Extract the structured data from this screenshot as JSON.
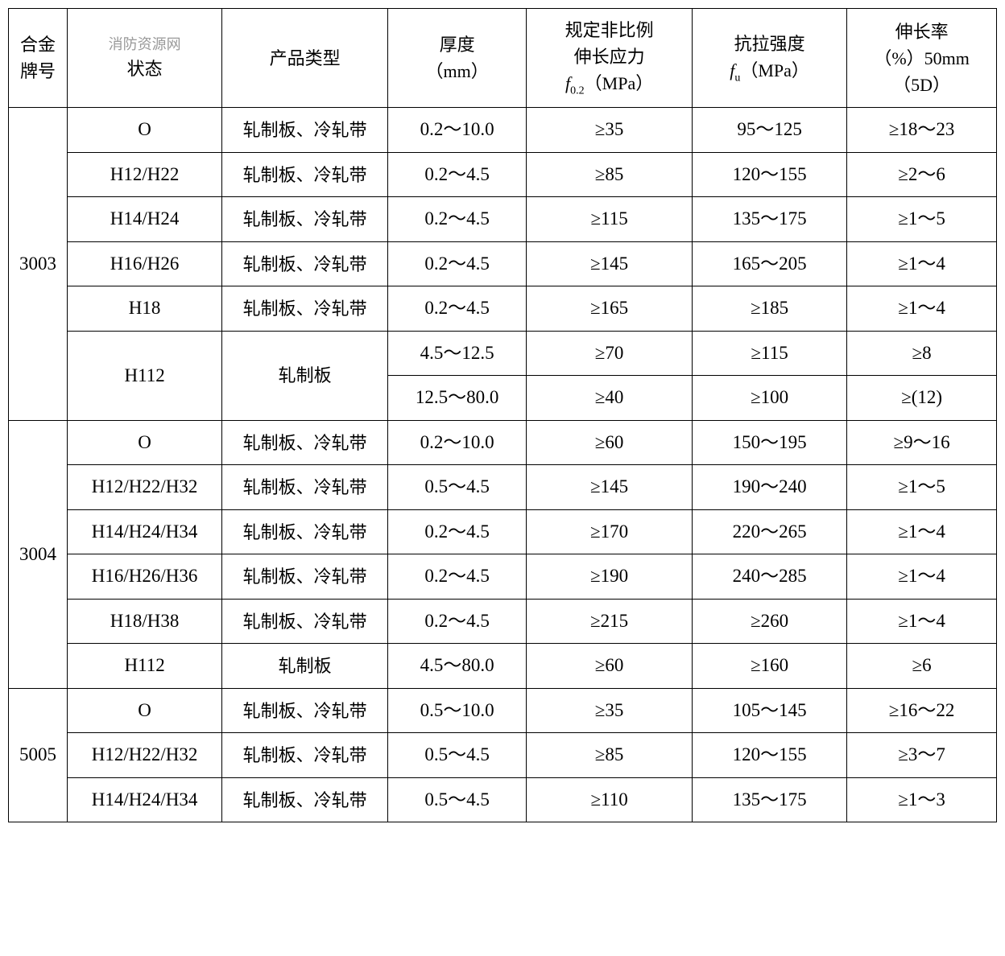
{
  "headers": {
    "col1_l1": "合金",
    "col1_l2": "牌号",
    "col2_watermark": "消防资源网",
    "col2": "状态",
    "col3": "产品类型",
    "col4_l1": "厚度",
    "col4_l2": "（mm）",
    "col5_l1": "规定非比例",
    "col5_l2": "伸长应力",
    "col5_l3a": "f",
    "col5_l3b": "0.2",
    "col5_l3c": "（MPa）",
    "col6_l1": "抗拉强度",
    "col6_l2a": "f",
    "col6_l2b": "u",
    "col6_l2c": "（MPa）",
    "col7_l1": "伸长率",
    "col7_l2": "（%）50mm",
    "col7_l3": "（5D）"
  },
  "groups": [
    {
      "alloy": "3003",
      "rows": [
        {
          "state": "O",
          "product": "轧制板、冷轧带",
          "thickness": "0.2～10.0",
          "f02": "≥35",
          "fu": "95～125",
          "elong": "≥18～23",
          "rowspan": 1
        },
        {
          "state": "H12/H22",
          "product": "轧制板、冷轧带",
          "thickness": "0.2～4.5",
          "f02": "≥85",
          "fu": "120～155",
          "elong": "≥2～6",
          "rowspan": 1
        },
        {
          "state": "H14/H24",
          "product": "轧制板、冷轧带",
          "thickness": "0.2～4.5",
          "f02": "≥115",
          "fu": "135～175",
          "elong": "≥1～5",
          "rowspan": 1
        },
        {
          "state": "H16/H26",
          "product": "轧制板、冷轧带",
          "thickness": "0.2～4.5",
          "f02": "≥145",
          "fu": "165～205",
          "elong": "≥1～4",
          "rowspan": 1
        },
        {
          "state": "H18",
          "product": "轧制板、冷轧带",
          "thickness": "0.2～4.5",
          "f02": "≥165",
          "fu": "≥185",
          "elong": "≥1～4",
          "rowspan": 1
        },
        {
          "state": "H112",
          "product": "轧制板",
          "thickness": "4.5～12.5",
          "f02": "≥70",
          "fu": "≥115",
          "elong": "≥8",
          "rowspan": 2
        },
        {
          "thickness": "12.5～80.0",
          "f02": "≥40",
          "fu": "≥100",
          "elong": "≥(12)"
        }
      ],
      "rowcount": 7
    },
    {
      "alloy": "3004",
      "rows": [
        {
          "state": "O",
          "product": "轧制板、冷轧带",
          "thickness": "0.2～10.0",
          "f02": "≥60",
          "fu": "150～195",
          "elong": "≥9～16",
          "rowspan": 1
        },
        {
          "state": "H12/H22/H32",
          "product": "轧制板、冷轧带",
          "thickness": "0.5～4.5",
          "f02": "≥145",
          "fu": "190～240",
          "elong": "≥1～5",
          "rowspan": 1
        },
        {
          "state": "H14/H24/H34",
          "product": "轧制板、冷轧带",
          "thickness": "0.2～4.5",
          "f02": "≥170",
          "fu": "220～265",
          "elong": "≥1～4",
          "rowspan": 1
        },
        {
          "state": "H16/H26/H36",
          "product": "轧制板、冷轧带",
          "thickness": "0.2～4.5",
          "f02": "≥190",
          "fu": "240～285",
          "elong": "≥1～4",
          "rowspan": 1
        },
        {
          "state": "H18/H38",
          "product": "轧制板、冷轧带",
          "thickness": "0.2～4.5",
          "f02": "≥215",
          "fu": "≥260",
          "elong": "≥1～4",
          "rowspan": 1
        },
        {
          "state": "H112",
          "product": "轧制板",
          "thickness": "4.5～80.0",
          "f02": "≥60",
          "fu": "≥160",
          "elong": "≥6",
          "rowspan": 1
        }
      ],
      "rowcount": 6
    },
    {
      "alloy": "5005",
      "rows": [
        {
          "state": "O",
          "product": "轧制板、冷轧带",
          "thickness": "0.5～10.0",
          "f02": "≥35",
          "fu": "105～145",
          "elong": "≥16～22",
          "rowspan": 1
        },
        {
          "state": "H12/H22/H32",
          "product": "轧制板、冷轧带",
          "thickness": "0.5～4.5",
          "f02": "≥85",
          "fu": "120～155",
          "elong": "≥3～7",
          "rowspan": 1
        },
        {
          "state": "H14/H24/H34",
          "product": "轧制板、冷轧带",
          "thickness": "0.5～4.5",
          "f02": "≥110",
          "fu": "135～175",
          "elong": "≥1～3",
          "rowspan": 1
        }
      ],
      "rowcount": 3
    }
  ]
}
